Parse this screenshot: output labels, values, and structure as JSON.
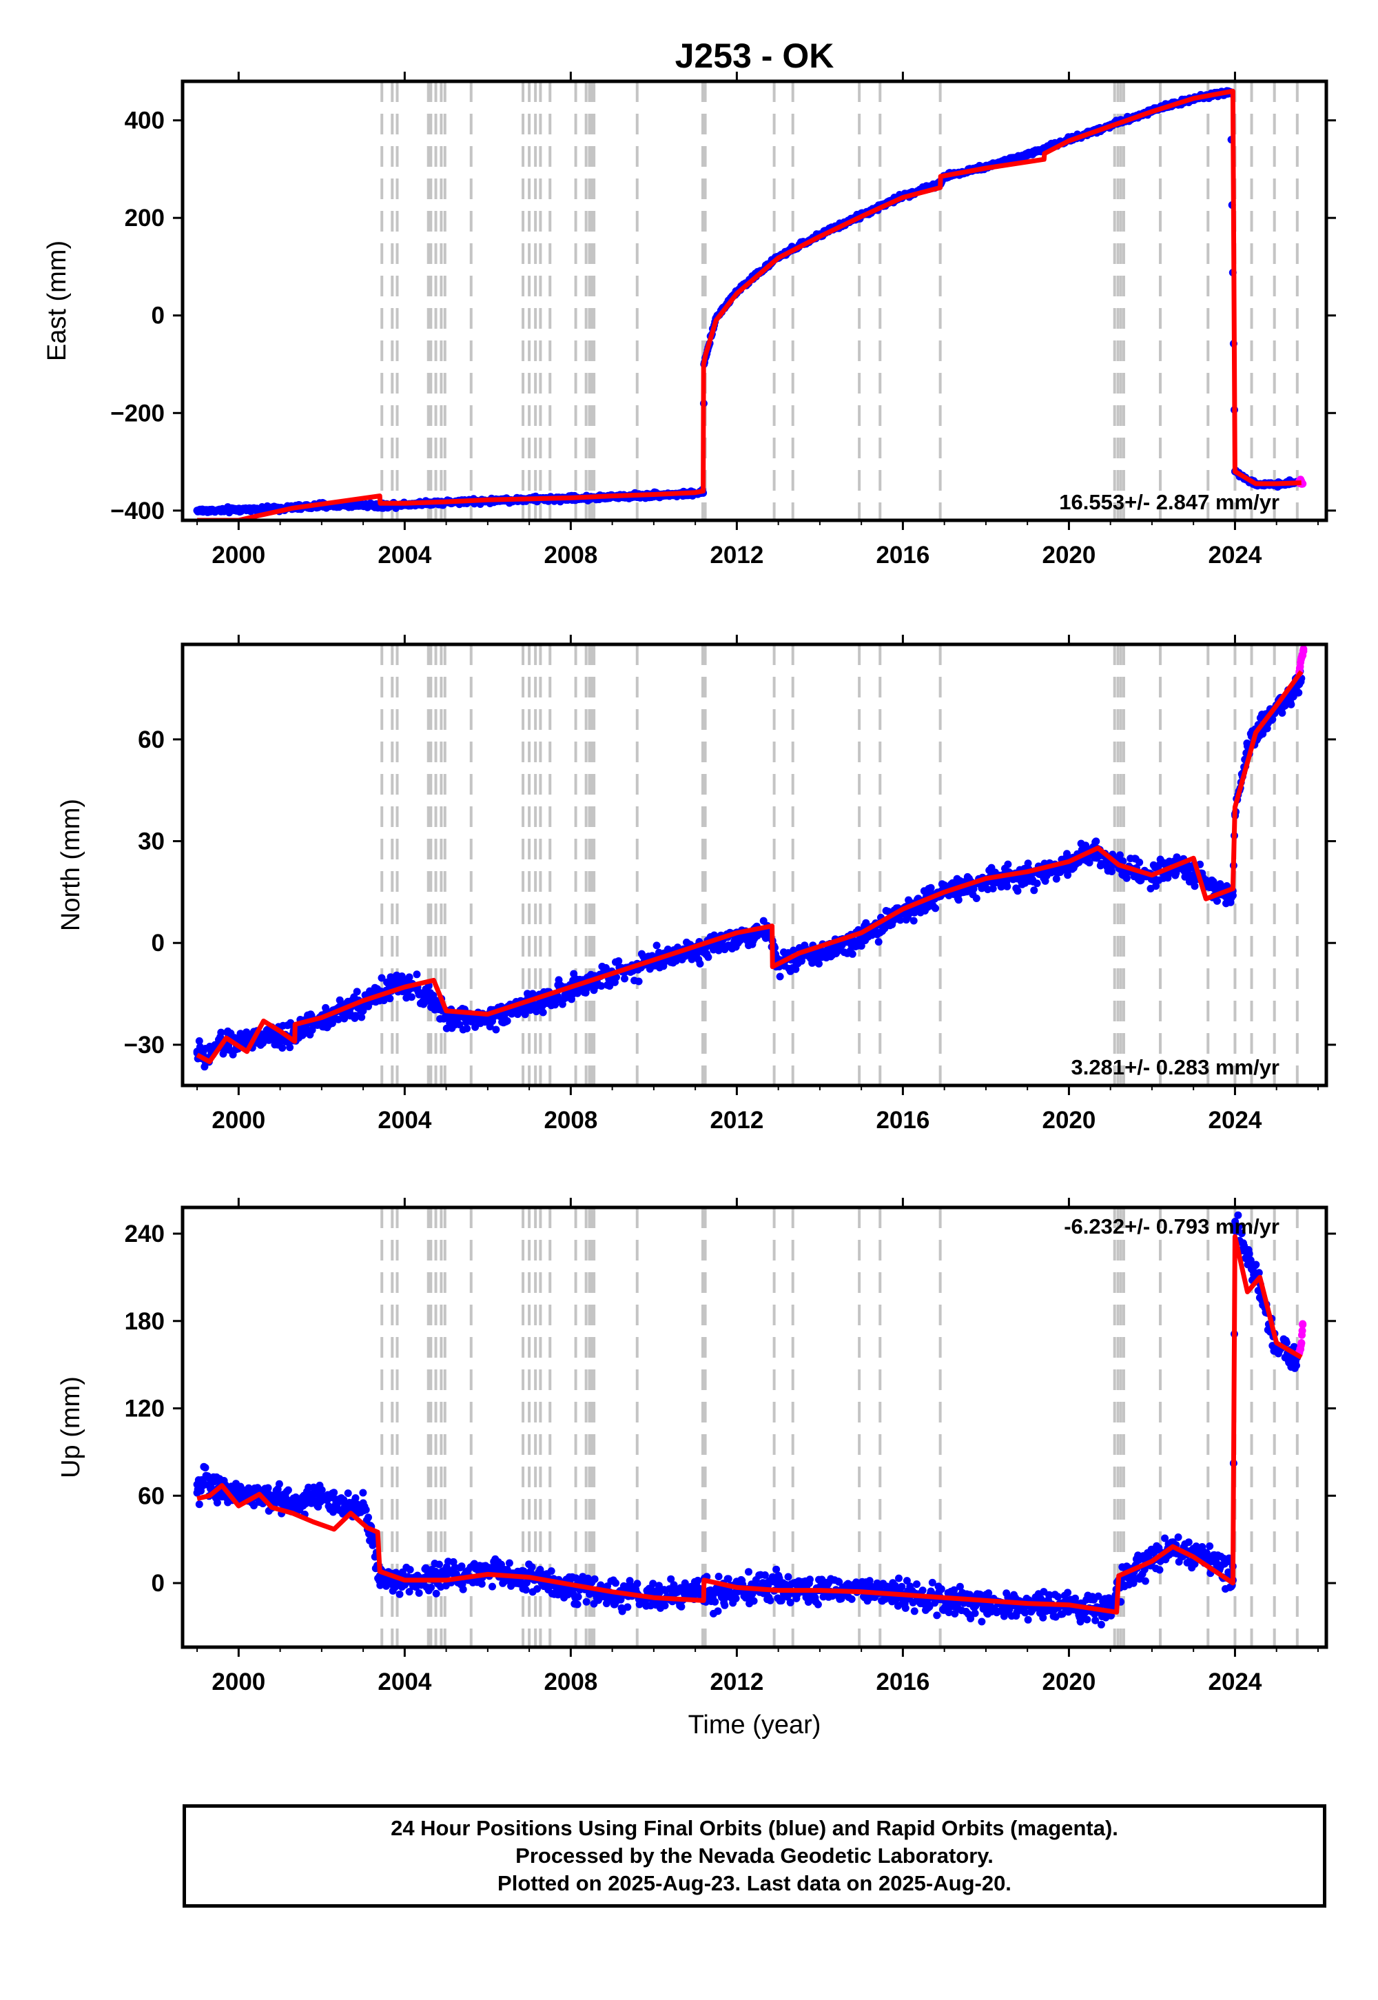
{
  "title": "J253 - OK",
  "chart_data": [
    {
      "type": "scatter",
      "panel": "east",
      "ylabel": "East (mm)",
      "xlabel": "",
      "xlim": [
        1998.65,
        2026.2
      ],
      "ylim": [
        -420,
        480
      ],
      "yticks": [
        -400,
        -200,
        0,
        200,
        400
      ],
      "xticks": [
        2000,
        2004,
        2008,
        2012,
        2016,
        2020,
        2024
      ],
      "rate_annotation": "16.553+/- 2.847 mm/yr",
      "annotation_position": "bottom-right",
      "series": [
        {
          "name": "",
          "color": "#0000ff",
          "kind": "final",
          "x": [
            1999.0,
            1999.5,
            2001.3,
            2002.0,
            2003.0,
            2003.4,
            2004.0,
            2005.0,
            2006.0,
            2007.0,
            2008.0,
            2009.0,
            2010.0,
            2011.0,
            2011.19,
            2011.21,
            2011.5,
            2012.0,
            2013.0,
            2014.0,
            2015.0,
            2016.0,
            2016.9,
            2017.0,
            2018.0,
            2019.0,
            2020.0,
            2021.0,
            2022.0,
            2023.0,
            2023.9,
            2024.0,
            2024.5,
            2025.0,
            2025.5
          ],
          "y": [
            -400,
            -400,
            -394,
            -390,
            -388,
            -390,
            -387,
            -383,
            -380,
            -377,
            -375,
            -372,
            -368,
            -365,
            -364,
            -100,
            -5,
            50,
            120,
            165,
            205,
            245,
            270,
            285,
            305,
            330,
            360,
            390,
            420,
            445,
            458,
            -320,
            -348,
            -345,
            -342
          ]
        },
        {
          "name": "",
          "color": "#ff00ff",
          "kind": "rapid",
          "x": [
            2025.55,
            2025.6,
            2025.63
          ],
          "y": [
            -342,
            -340,
            -345
          ]
        }
      ],
      "model": {
        "color": "#ff0000",
        "x": [
          1999.0,
          2000.0,
          2000.5,
          2001.3,
          2003.4,
          2003.41,
          2004.0,
          2005.0,
          2006.0,
          2007.0,
          2008.0,
          2009.0,
          2010.0,
          2011.0,
          2011.19,
          2011.2,
          2011.25,
          2011.5,
          2012.0,
          2013.0,
          2014.0,
          2015.0,
          2016.0,
          2016.9,
          2016.91,
          2018.0,
          2019.4,
          2019.41,
          2020.0,
          2021.0,
          2022.0,
          2023.0,
          2023.95,
          2024.0,
          2024.5,
          2025.0,
          2025.6
        ],
        "y": [
          -420,
          -420,
          -410,
          -395,
          -370,
          -385,
          -385,
          -382,
          -378,
          -376,
          -374,
          -370,
          -367,
          -363,
          -360,
          -100,
          -80,
          -10,
          45,
          118,
          162,
          203,
          242,
          262,
          285,
          302,
          320,
          332,
          358,
          388,
          418,
          445,
          460,
          -320,
          -345,
          -345,
          -343
        ]
      }
    },
    {
      "type": "scatter",
      "panel": "north",
      "ylabel": "North (mm)",
      "xlabel": "",
      "xlim": [
        1998.65,
        2026.2
      ],
      "ylim": [
        -42,
        88
      ],
      "yticks": [
        -30,
        0,
        30,
        60
      ],
      "xticks": [
        2000,
        2004,
        2008,
        2012,
        2016,
        2020,
        2024
      ],
      "rate_annotation": "3.281+/- 0.283 mm/yr",
      "annotation_position": "bottom-right",
      "series": [
        {
          "name": "",
          "color": "#0000ff",
          "kind": "final",
          "x": [
            1999.0,
            1999.2,
            1999.5,
            2001.3,
            2002.0,
            2003.0,
            2003.8,
            2004.5,
            2005.0,
            2006.0,
            2007.0,
            2008.0,
            2009.0,
            2010.0,
            2011.0,
            2012.0,
            2012.8,
            2013.0,
            2014.0,
            2015.0,
            2016.0,
            2017.0,
            2018.0,
            2019.0,
            2020.0,
            2020.7,
            2021.2,
            2022.0,
            2022.8,
            2023.5,
            2023.95,
            2024.0,
            2024.3,
            2024.8,
            2025.3,
            2025.6
          ],
          "y": [
            -32,
            -35,
            -30,
            -27,
            -22,
            -18,
            -12,
            -15,
            -22,
            -22,
            -18,
            -14,
            -9,
            -5,
            -2,
            2,
            4,
            -6,
            -3,
            2,
            9,
            15,
            18,
            20,
            23,
            27,
            22,
            20,
            22,
            16,
            14,
            38,
            58,
            66,
            73,
            78
          ]
        },
        {
          "name": "",
          "color": "#ff00ff",
          "kind": "rapid",
          "x": [
            2025.55,
            2025.6,
            2025.65
          ],
          "y": [
            80,
            84,
            86
          ]
        }
      ],
      "model": {
        "color": "#ff0000",
        "x": [
          1999.0,
          1999.3,
          1999.7,
          2000.2,
          2000.6,
          2001.0,
          2001.35,
          2001.36,
          2002.0,
          2003.0,
          2004.0,
          2004.7,
          2005.0,
          2006.0,
          2007.0,
          2008.0,
          2009.0,
          2010.0,
          2011.0,
          2012.0,
          2012.85,
          2012.86,
          2013.5,
          2014.0,
          2015.0,
          2016.0,
          2017.0,
          2018.0,
          2019.0,
          2020.0,
          2020.7,
          2021.2,
          2022.0,
          2023.0,
          2023.3,
          2023.95,
          2024.0,
          2024.5,
          2025.0,
          2025.6
        ],
        "y": [
          -33,
          -35,
          -28,
          -32,
          -23,
          -26,
          -29,
          -24,
          -22,
          -17,
          -13,
          -11,
          -20,
          -21,
          -17,
          -13,
          -9,
          -5,
          -1,
          3,
          5,
          -7,
          -3,
          -1,
          3,
          10,
          15,
          19,
          21,
          24,
          28,
          23,
          20,
          25,
          13,
          16,
          40,
          62,
          70,
          80
        ]
      }
    },
    {
      "type": "scatter",
      "panel": "up",
      "ylabel": "Up (mm)",
      "xlabel": "Time (year)",
      "xlim": [
        1998.65,
        2026.2
      ],
      "ylim": [
        -44,
        258
      ],
      "yticks": [
        0,
        60,
        120,
        180,
        240
      ],
      "xticks": [
        2000,
        2004,
        2008,
        2012,
        2016,
        2020,
        2024
      ],
      "rate_annotation": "-6.232+/- 0.793 mm/yr",
      "annotation_position": "top-right",
      "series": [
        {
          "name": "",
          "color": "#0000ff",
          "kind": "final",
          "x": [
            1999.0,
            1999.3,
            1999.5,
            2001.3,
            2002.0,
            2002.5,
            2003.0,
            2003.4,
            2004.0,
            2005.0,
            2006.0,
            2007.0,
            2008.0,
            2009.0,
            2010.0,
            2011.0,
            2012.0,
            2013.0,
            2014.0,
            2015.0,
            2016.0,
            2017.0,
            2018.0,
            2019.0,
            2020.0,
            2021.0,
            2021.5,
            2022.5,
            2023.5,
            2023.95,
            2024.0,
            2024.5,
            2025.0,
            2025.5
          ],
          "y": [
            62,
            72,
            65,
            55,
            60,
            50,
            55,
            5,
            0,
            5,
            8,
            3,
            -2,
            -8,
            -10,
            -7,
            -5,
            -3,
            -5,
            -4,
            -8,
            -12,
            -14,
            -15,
            -16,
            -18,
            10,
            25,
            15,
            2,
            245,
            210,
            160,
            155
          ]
        },
        {
          "name": "",
          "color": "#ff00ff",
          "kind": "rapid",
          "x": [
            2025.55,
            2025.6,
            2025.63
          ],
          "y": [
            158,
            165,
            178
          ]
        }
      ],
      "model": {
        "color": "#ff0000",
        "x": [
          1999.0,
          1999.3,
          1999.6,
          2000.0,
          2000.5,
          2000.8,
          2001.3,
          2001.8,
          2002.3,
          2002.7,
          2003.1,
          2003.35,
          2003.4,
          2004.0,
          2005.0,
          2006.0,
          2007.0,
          2008.0,
          2009.0,
          2010.0,
          2011.2,
          2011.21,
          2012.0,
          2013.0,
          2014.0,
          2015.0,
          2016.0,
          2017.0,
          2018.0,
          2019.0,
          2020.0,
          2021.15,
          2021.2,
          2022.0,
          2022.5,
          2023.0,
          2023.95,
          2024.0,
          2024.3,
          2024.6,
          2025.0,
          2025.6
        ],
        "y": [
          58,
          60,
          67,
          53,
          61,
          52,
          48,
          42,
          37,
          48,
          38,
          35,
          8,
          2,
          2,
          6,
          4,
          -1,
          -6,
          -10,
          -12,
          2,
          -3,
          -5,
          -5,
          -6,
          -8,
          -10,
          -12,
          -14,
          -15,
          -20,
          5,
          15,
          25,
          18,
          0,
          238,
          200,
          210,
          165,
          155
        ]
      }
    }
  ],
  "footer": {
    "line1": "24 Hour Positions Using Final Orbits (blue) and Rapid Orbits (magenta).",
    "line2": "Processed by the Nevada Geodetic Laboratory.",
    "line3": "Plotted on 2025-Aug-23. Last data on 2025-Aug-20."
  }
}
